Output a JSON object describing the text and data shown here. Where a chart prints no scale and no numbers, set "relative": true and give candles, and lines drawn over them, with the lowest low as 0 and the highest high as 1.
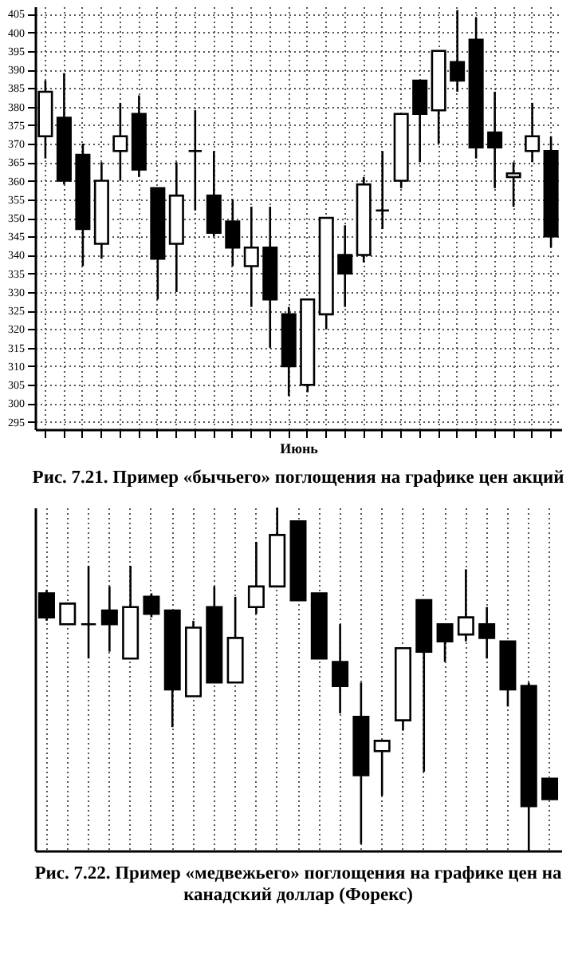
{
  "chart_data": [
    {
      "type": "candlestick",
      "title": "Рис. 7.21. Пример «бычьего» поглощения на графике цен акций",
      "xlabel": "Июнь",
      "categories": [
        null,
        null,
        null,
        null,
        null,
        null,
        null,
        null,
        null,
        null,
        null,
        null,
        null,
        null,
        null,
        null,
        null,
        null,
        null,
        null,
        null,
        null,
        null,
        null,
        null,
        null,
        null,
        null
      ],
      "ohlc": [
        [
          372,
          387,
          366,
          384
        ],
        [
          377,
          389,
          359,
          360
        ],
        [
          367,
          370,
          337,
          347
        ],
        [
          343,
          365,
          339,
          360
        ],
        [
          368,
          381,
          360,
          372
        ],
        [
          378,
          383,
          361,
          363
        ],
        [
          358,
          358,
          328,
          339
        ],
        [
          343,
          365,
          330,
          356
        ],
        [
          368,
          379,
          352,
          368
        ],
        [
          356,
          368,
          345,
          346
        ],
        [
          349,
          355,
          337,
          342
        ],
        [
          337,
          353,
          326,
          342
        ],
        [
          342,
          353,
          315,
          328
        ],
        [
          324,
          326,
          302,
          310
        ],
        [
          305,
          328,
          303,
          328
        ],
        [
          324,
          350,
          320,
          350
        ],
        [
          340,
          348,
          326,
          335
        ],
        [
          340,
          361,
          338,
          359
        ],
        [
          352,
          368,
          347,
          352
        ],
        [
          360,
          378,
          358,
          378
        ],
        [
          387,
          387,
          365,
          378
        ],
        [
          379,
          395,
          370,
          395
        ],
        [
          392,
          406,
          384,
          387
        ],
        [
          398,
          404,
          366,
          369
        ],
        [
          373,
          384,
          358,
          369
        ],
        [
          361,
          365,
          353,
          362
        ],
        [
          368,
          381,
          365,
          372
        ],
        [
          368,
          372,
          342,
          345
        ]
      ],
      "ylim": [
        293,
        407
      ],
      "yticks": [
        295,
        300,
        305,
        310,
        315,
        320,
        325,
        330,
        335,
        340,
        345,
        350,
        355,
        360,
        365,
        370,
        375,
        380,
        385,
        390,
        395,
        400,
        405
      ],
      "grid": true
    },
    {
      "type": "candlestick",
      "title": "Рис. 7.22. Пример «медвежьего» поглощения на графике цен на канадский доллар (Форекс)",
      "relative": true,
      "categories": [
        null,
        null,
        null,
        null,
        null,
        null,
        null,
        null,
        null,
        null,
        null,
        null,
        null,
        null,
        null,
        null,
        null,
        null,
        null,
        null,
        null,
        null,
        null,
        null,
        null
      ],
      "ohlc": [
        [
          0.75,
          0.76,
          0.67,
          0.68
        ],
        [
          0.66,
          0.72,
          0.66,
          0.72
        ],
        [
          0.66,
          0.83,
          0.56,
          0.66
        ],
        [
          0.7,
          0.77,
          0.58,
          0.66
        ],
        [
          0.56,
          0.83,
          0.56,
          0.71
        ],
        [
          0.74,
          0.75,
          0.68,
          0.69
        ],
        [
          0.7,
          0.7,
          0.36,
          0.47
        ],
        [
          0.45,
          0.67,
          0.45,
          0.65
        ],
        [
          0.71,
          0.77,
          0.49,
          0.49
        ],
        [
          0.49,
          0.74,
          0.49,
          0.62
        ],
        [
          0.71,
          0.9,
          0.69,
          0.77
        ],
        [
          0.77,
          1,
          0.77,
          0.92
        ],
        [
          0.96,
          0.96,
          0.73,
          0.73
        ],
        [
          0.75,
          0.75,
          0.56,
          0.56
        ],
        [
          0.55,
          0.66,
          0.4,
          0.48
        ],
        [
          0.39,
          0.49,
          0.02,
          0.22
        ],
        [
          0.29,
          0.32,
          0.16,
          0.32
        ],
        [
          0.38,
          0.59,
          0.35,
          0.59
        ],
        [
          0.73,
          0.73,
          0.23,
          0.58
        ],
        [
          0.66,
          0.66,
          0.55,
          0.61
        ],
        [
          0.63,
          0.82,
          0.61,
          0.68
        ],
        [
          0.66,
          0.71,
          0.56,
          0.62
        ],
        [
          0.61,
          0.61,
          0.42,
          0.47
        ],
        [
          0.48,
          0.49,
          0,
          0.13
        ],
        [
          0.21,
          0.21,
          0.15,
          0.15
        ]
      ],
      "grid": "x"
    }
  ]
}
